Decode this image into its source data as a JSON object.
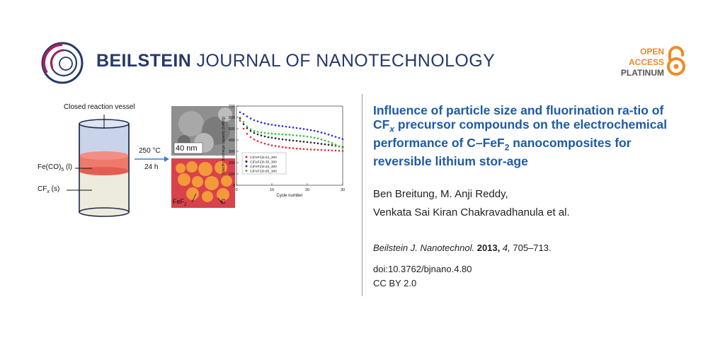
{
  "header": {
    "journal_bold": "BEILSTEIN",
    "journal_rest": " JOURNAL OF NANOTECHNOLOGY",
    "oa_line1": "OPEN",
    "oa_line2": "ACCESS",
    "oa_line3": "PLATINUM",
    "colors": {
      "navy": "#27386b",
      "magenta": "#a0215f",
      "orange": "#f08a24"
    }
  },
  "graphic": {
    "vessel_label": "Closed reaction vessel",
    "liquid_label_main": "Fe(CO)",
    "liquid_label_sub": "5",
    "liquid_label_end": " (l)",
    "solid_label_main": "CF",
    "solid_label_sub": "x",
    "solid_label_end": " (s)",
    "temperature": "250 °C",
    "duration": "24 h",
    "scale_bar": "40 nm",
    "fef2_main": "FeF",
    "fef2_sub": "2",
    "carbon_label": "C"
  },
  "chart_data": {
    "type": "scatter",
    "xlabel": "Cycle number",
    "ylabel": "Specific discharge capacity (mAh/g)",
    "xlim": [
      0,
      30
    ],
    "ylim": [
      0,
      700
    ],
    "xticks": [
      0,
      10,
      20,
      30
    ],
    "yticks": [
      0,
      100,
      200,
      300,
      400,
      500,
      600,
      700
    ],
    "legend_position": "lower-left",
    "series": [
      {
        "name": "C(FeF2)0.24_300",
        "color": "#e8262a",
        "x": [
          1,
          2,
          3,
          4,
          5,
          6,
          7,
          8,
          9,
          10,
          11,
          12,
          13,
          14,
          15,
          16,
          17,
          18,
          19,
          20,
          21,
          22,
          23,
          24,
          25,
          26,
          27,
          28,
          29,
          30
        ],
        "y": [
          570,
          500,
          455,
          425,
          405,
          390,
          378,
          368,
          360,
          353,
          347,
          342,
          337,
          333,
          330,
          327,
          324,
          322,
          320,
          318,
          316,
          315,
          313,
          312,
          310,
          309,
          307,
          306,
          305,
          303
        ]
      },
      {
        "name": "C(FeF2)0.35_300",
        "color": "#222222",
        "x": [
          1,
          2,
          3,
          4,
          5,
          6,
          7,
          8,
          9,
          10,
          11,
          12,
          13,
          14,
          15,
          16,
          17,
          18,
          19,
          20,
          21,
          22,
          23,
          24,
          25,
          26,
          27,
          28,
          29,
          30
        ],
        "y": [
          590,
          540,
          505,
          480,
          462,
          450,
          440,
          432,
          425,
          420,
          415,
          410,
          406,
          402,
          398,
          395,
          392,
          388,
          385,
          382,
          378,
          374,
          370,
          366,
          362,
          358,
          354,
          350,
          344,
          338
        ]
      },
      {
        "name": "C(FeF2)0.53_300",
        "color": "#2a2ae6",
        "x": [
          1,
          2,
          3,
          4,
          5,
          6,
          7,
          8,
          9,
          10,
          11,
          12,
          13,
          14,
          15,
          16,
          17,
          18,
          19,
          20,
          21,
          22,
          23,
          24,
          25,
          26,
          27,
          28,
          29,
          30
        ],
        "y": [
          645,
          630,
          608,
          590,
          575,
          565,
          555,
          547,
          540,
          535,
          530,
          526,
          522,
          518,
          514,
          510,
          506,
          502,
          497,
          492,
          487,
          481,
          474,
          466,
          458,
          448,
          438,
          428,
          418,
          408
        ]
      },
      {
        "name": "C(FeF2)0.65_300",
        "color": "#2ec42e",
        "x": [
          1,
          2,
          3,
          4,
          5,
          6,
          7,
          8,
          9,
          10,
          11,
          12,
          13,
          14,
          15,
          16,
          17,
          18,
          19,
          20,
          21,
          22,
          23,
          24,
          25,
          26,
          27,
          28,
          29,
          30
        ],
        "y": [
          600,
          560,
          520,
          495,
          480,
          472,
          466,
          462,
          459,
          456,
          454,
          452,
          450,
          448,
          446,
          443,
          440,
          437,
          434,
          430,
          426,
          420,
          414,
          405,
          395,
          385,
          372,
          358,
          345,
          332
        ]
      }
    ]
  },
  "article": {
    "title_part1": "Influence of particle size and fluorination ra-tio of CF",
    "title_sub_x": "x",
    "title_part2": " precursor compounds on the electrochemical performance of C–FeF",
    "title_sub_2": "2",
    "title_part3": " nanocomposites for reversible lithium stor-age",
    "authors_line1": "Ben Breitung, M. Anji Reddy,",
    "authors_line2": "Venkata Sai Kiran Chakravadhanula et al.",
    "citation_journal": "Beilstein J. Nanotechnol.",
    "citation_year": "2013,",
    "citation_volume": "4,",
    "citation_pages": "705–713.",
    "doi": "doi:10.3762/bjnano.4.80",
    "license": "CC BY 2.0"
  }
}
